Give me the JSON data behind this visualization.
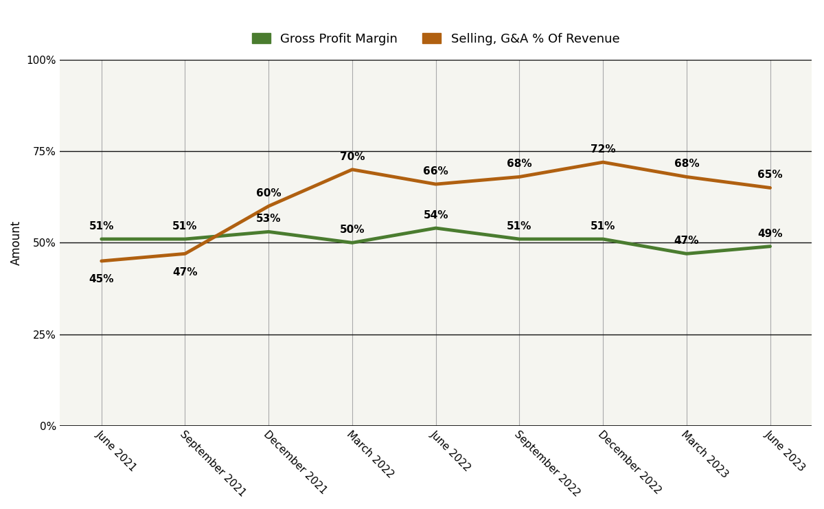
{
  "categories": [
    "June 2021",
    "September 2021",
    "December 2021",
    "March 2022",
    "June 2022",
    "September 2022",
    "December 2022",
    "March 2023",
    "June 2023"
  ],
  "gross_profit_margin": [
    51,
    51,
    53,
    50,
    54,
    51,
    51,
    47,
    49
  ],
  "selling_ga_revenue": [
    45,
    47,
    60,
    70,
    66,
    68,
    72,
    68,
    65
  ],
  "gpm_color": "#4a7c2f",
  "sga_color": "#b06010",
  "line_width": 3.5,
  "ylabel": "Amount",
  "ylim": [
    0,
    100
  ],
  "yticks": [
    0,
    25,
    50,
    75,
    100
  ],
  "ytick_labels": [
    "0%",
    "25%",
    "50%",
    "75%",
    "100%"
  ],
  "legend_gpm": "Gross Profit Margin",
  "legend_sga": "Selling, G&A % Of Revenue",
  "background_color": "#ffffff",
  "plot_bg_color": "#f5f5f0",
  "grid_color": "#111111",
  "dropline_color": "#aaaaaa",
  "annotation_fontsize": 11,
  "tick_fontsize": 11,
  "label_fontsize": 12,
  "legend_fontsize": 13,
  "gpm_annot_offsets": [
    8,
    8,
    8,
    8,
    8,
    8,
    8,
    8,
    8
  ],
  "sga_annot_offsets": [
    -14,
    -14,
    8,
    8,
    8,
    8,
    8,
    8,
    8
  ]
}
